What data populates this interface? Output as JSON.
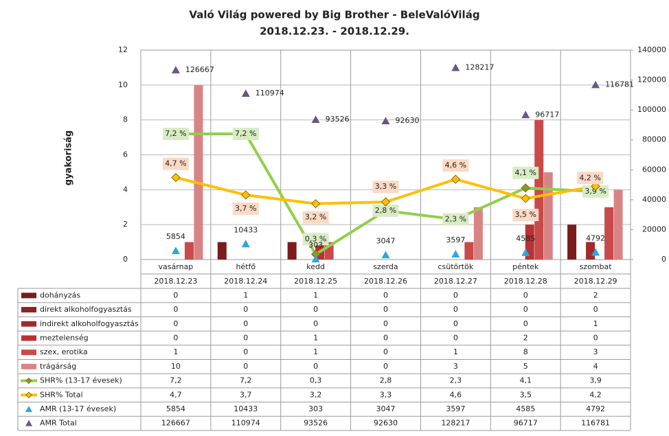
{
  "chart_data": {
    "type": "combo",
    "title": "Való Világ powered by Big Brother - BeleValóVilág",
    "subtitle": "2018.12.23. - 2018.12.29.",
    "y_label": "gyakoriság",
    "categories": [
      "vasárnap",
      "hétfő",
      "kedd",
      "szerda",
      "csütörtök",
      "péntek",
      "szombat"
    ],
    "dates": [
      "2018.12.23",
      "2018.12.24",
      "2018.12.25",
      "2018.12.26",
      "2018.12.27",
      "2018.12.28",
      "2018.12.29"
    ],
    "ylim": [
      0,
      12
    ],
    "yticks": [
      0,
      2,
      4,
      6,
      8,
      10,
      12
    ],
    "y2lim": [
      0,
      140000
    ],
    "y2ticks": [
      0,
      20000,
      40000,
      60000,
      80000,
      100000,
      120000,
      140000
    ],
    "grid": true,
    "series": [
      {
        "name": "dohányzás",
        "type": "bar",
        "color": "#7a1c1c",
        "values": [
          0,
          1,
          1,
          0,
          0,
          0,
          2
        ]
      },
      {
        "name": "direkt alkoholfogyasztás",
        "type": "bar",
        "color": "#8e2222",
        "values": [
          0,
          0,
          0,
          0,
          0,
          0,
          0
        ]
      },
      {
        "name": "indirekt alkoholfogyasztás",
        "type": "bar",
        "color": "#a22a2a",
        "values": [
          0,
          0,
          0,
          0,
          0,
          0,
          1
        ]
      },
      {
        "name": "meztelenség",
        "type": "bar",
        "color": "#b83232",
        "values": [
          0,
          0,
          1,
          0,
          0,
          2,
          0
        ]
      },
      {
        "name": "szex, erotika",
        "type": "bar",
        "color": "#c94a4a",
        "values": [
          1,
          0,
          1,
          0,
          1,
          8,
          3
        ]
      },
      {
        "name": "trágárság",
        "type": "bar",
        "color": "#d98484",
        "values": [
          10,
          0,
          0,
          0,
          3,
          5,
          4
        ]
      },
      {
        "name": "SHR% (13-17 évesek)",
        "type": "line",
        "color": "#8fcf4a",
        "label_bg": "#d8ecc4",
        "values": [
          7.2,
          7.2,
          0.3,
          2.8,
          2.3,
          4.1,
          3.9
        ],
        "value_labels": [
          "7,2 %",
          "7,2 %",
          "0,3 %",
          "2,8 %",
          "2,3 %",
          "4,1 %",
          "3,9 %"
        ],
        "table_labels": [
          "7,2",
          "7,2",
          "0,3",
          "2,8",
          "2,3",
          "4,1",
          "3,9"
        ]
      },
      {
        "name": "SHR% Total",
        "type": "line",
        "color": "#ffbf00",
        "label_bg": "#fbd9c4",
        "values": [
          4.7,
          3.7,
          3.2,
          3.3,
          4.6,
          3.5,
          4.2
        ],
        "value_labels": [
          "4,7 %",
          "3,7 %",
          "3,2 %",
          "3,3 %",
          "4,6 %",
          "3,5 %",
          "4,2 %"
        ],
        "table_labels": [
          "4,7",
          "3,7",
          "3,2",
          "3,3",
          "4,6",
          "3,5",
          "4,2"
        ]
      },
      {
        "name": "AMR (13-17 évesek)",
        "type": "marker",
        "axis": "y2",
        "color": "#2aa8e0",
        "values": [
          5854,
          10433,
          303,
          3047,
          3597,
          4585,
          4792
        ]
      },
      {
        "name": "AMR Total",
        "type": "marker",
        "axis": "y2",
        "color": "#6b5584",
        "values": [
          126667,
          110974,
          93526,
          92630,
          128217,
          96717,
          116781
        ]
      }
    ]
  }
}
